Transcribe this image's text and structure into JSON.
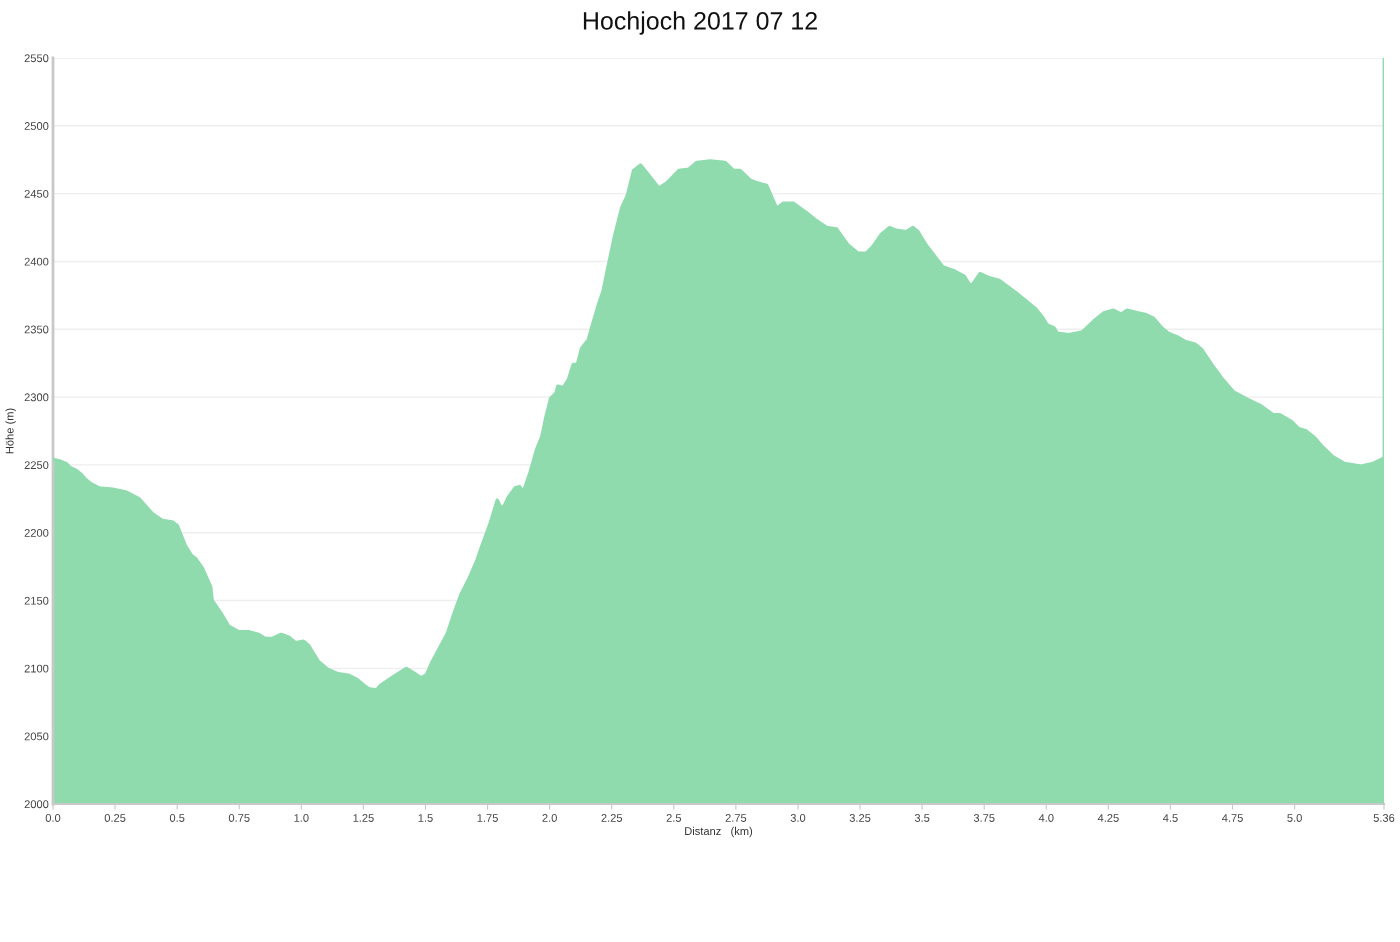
{
  "chart_data": {
    "type": "area",
    "title": "Hochjoch 2017 07 12",
    "xlabel": "Distanz   (km)",
    "ylabel": "Höhe (m)",
    "x": [
      0.0,
      0.026,
      0.053,
      0.069,
      0.093,
      0.113,
      0.133,
      0.153,
      0.187,
      0.24,
      0.294,
      0.347,
      0.4,
      0.44,
      0.481,
      0.501,
      0.534,
      0.558,
      0.574,
      0.601,
      0.635,
      0.641,
      0.675,
      0.708,
      0.748,
      0.788,
      0.828,
      0.855,
      0.882,
      0.919,
      0.949,
      0.976,
      1.009,
      1.029,
      1.069,
      1.109,
      1.149,
      1.189,
      1.223,
      1.249,
      1.27,
      1.303,
      1.316,
      1.363,
      1.397,
      1.423,
      1.45,
      1.483,
      1.503,
      1.525,
      1.56,
      1.589,
      1.618,
      1.642,
      1.675,
      1.708,
      1.725,
      1.757,
      1.771,
      1.789,
      1.804,
      1.818,
      1.833,
      1.861,
      1.879,
      1.894,
      1.919,
      1.947,
      1.969,
      1.986,
      2.004,
      2.026,
      2.033,
      2.055,
      2.076,
      2.095,
      2.112,
      2.129,
      2.155,
      2.174,
      2.198,
      2.215,
      2.234,
      2.262,
      2.291,
      2.312,
      2.338,
      2.366,
      2.393,
      2.44,
      2.473,
      2.52,
      2.56,
      2.593,
      2.647,
      2.707,
      2.74,
      2.767,
      2.807,
      2.834,
      2.874,
      2.914,
      2.941,
      2.981,
      3.034,
      3.075,
      3.115,
      3.155,
      3.202,
      3.242,
      3.275,
      3.302,
      3.336,
      3.369,
      3.396,
      3.436,
      3.463,
      3.483,
      3.516,
      3.55,
      3.583,
      3.63,
      3.67,
      3.69,
      3.703,
      3.733,
      3.77,
      3.81,
      3.877,
      3.957,
      3.984,
      4.004,
      4.031,
      4.045,
      4.091,
      4.145,
      4.191,
      4.231,
      4.271,
      4.301,
      4.325,
      4.371,
      4.398,
      4.432,
      4.465,
      4.492,
      4.532,
      4.559,
      4.599,
      4.626,
      4.666,
      4.706,
      4.753,
      4.813,
      4.86,
      4.913,
      4.94,
      4.987,
      5.014,
      5.047,
      5.081,
      5.114,
      5.154,
      5.201,
      5.268,
      5.315,
      5.36
    ],
    "series": [
      {
        "color": "#8fdbae",
        "values": [
          2254,
          2253,
          2251,
          2248,
          2246,
          2243,
          2239,
          2236,
          2233,
          2232,
          2230,
          2225,
          2214,
          2209,
          2208,
          2205,
          2190,
          2183,
          2181,
          2174,
          2160,
          2150,
          2141,
          2131,
          2127,
          2127,
          2125,
          2122,
          2122,
          2125,
          2123,
          2119,
          2120,
          2117,
          2105,
          2099,
          2096,
          2095,
          2092,
          2088,
          2085,
          2084,
          2087,
          2093,
          2097,
          2100,
          2097,
          2093,
          2095,
          2104,
          2116,
          2126,
          2142,
          2154,
          2166,
          2180,
          2189,
          2205,
          2213,
          2224,
          2218,
          2220,
          2226,
          2233,
          2234,
          2230,
          2243,
          2261,
          2271,
          2286,
          2299,
          2303,
          2308,
          2307,
          2313,
          2324,
          2324,
          2336,
          2342,
          2354,
          2369,
          2378,
          2395,
          2419,
          2440,
          2448,
          2467,
          2471,
          2465,
          2454,
          2458,
          2467,
          2468,
          2473,
          2474,
          2473,
          2467,
          2467,
          2460,
          2458,
          2456,
          2439,
          2443,
          2443,
          2436,
          2430,
          2425,
          2424,
          2412,
          2406,
          2406,
          2411,
          2420,
          2425,
          2423,
          2422,
          2425,
          2422,
          2412,
          2404,
          2396,
          2393,
          2389,
          2383,
          2383,
          2391,
          2388,
          2386,
          2377,
          2365,
          2359,
          2353,
          2351,
          2347,
          2346,
          2348,
          2356,
          2362,
          2364,
          2361,
          2364,
          2362,
          2361,
          2358,
          2351,
          2347,
          2344,
          2341,
          2339,
          2335,
          2324,
          2314,
          2304,
          2298,
          2294,
          2287,
          2287,
          2282,
          2277,
          2275,
          2270,
          2263,
          2256,
          2251,
          2249,
          2251,
          2255
        ]
      }
    ],
    "xlim": [
      0,
      5.36
    ],
    "ylim": [
      2000,
      2550
    ],
    "xticks": [
      {
        "value": 0,
        "label": "0.0"
      },
      0.25,
      0.5,
      0.75,
      {
        "value": 1,
        "label": "1.0"
      },
      1.25,
      1.5,
      1.75,
      {
        "value": 2,
        "label": "2.0"
      },
      2.25,
      2.5,
      2.75,
      {
        "value": 3,
        "label": "3.0"
      },
      3.25,
      3.5,
      3.75,
      {
        "value": 4,
        "label": "4.0"
      },
      4.25,
      4.5,
      4.75,
      {
        "value": 5,
        "label": "5.0"
      },
      5.36
    ],
    "yticks": [
      2000,
      2050,
      2100,
      2150,
      2200,
      2250,
      2300,
      2350,
      2400,
      2450,
      2500,
      2550
    ],
    "ref_lines": [
      {
        "axis": "x",
        "value": 5.36,
        "color": "#8fdbae"
      }
    ],
    "grid": "y"
  }
}
